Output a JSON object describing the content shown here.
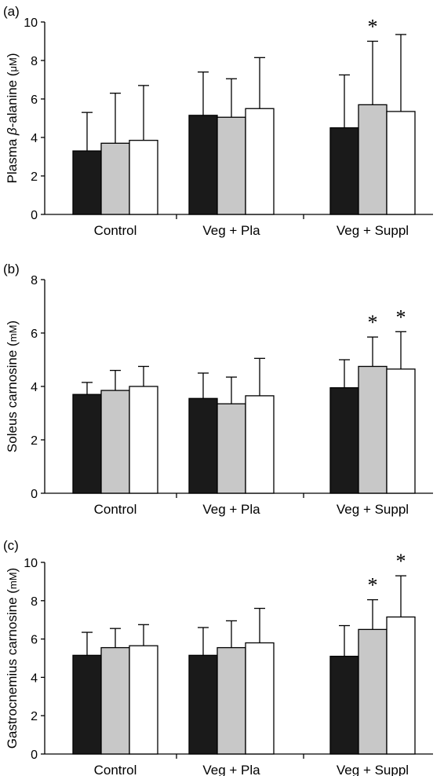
{
  "chart_data": [
    {
      "type": "bar",
      "panel_label": "(a)",
      "ylabel_parts": [
        "Plasma ",
        "β",
        "-alanine (",
        "μM",
        ")"
      ],
      "categories": [
        "Control",
        "Veg + Pla",
        "Veg + Suppl"
      ],
      "ylim": [
        0,
        10
      ],
      "yticks": [
        "0",
        "2",
        "4",
        "6",
        "8",
        "10"
      ],
      "series": [
        {
          "color": "#1a1a1a",
          "values": [
            3.3,
            5.15,
            4.5
          ],
          "errors": [
            2.0,
            2.25,
            2.75
          ]
        },
        {
          "color": "#c8c8c8",
          "values": [
            3.7,
            5.05,
            5.7
          ],
          "errors": [
            2.6,
            2.0,
            3.3
          ]
        },
        {
          "color": "#ffffff",
          "values": [
            3.85,
            5.5,
            5.35
          ],
          "errors": [
            2.85,
            2.65,
            4.0
          ]
        }
      ],
      "significance": [
        {
          "category": 2,
          "series": 1,
          "symbol": "*"
        }
      ],
      "grid": false,
      "legend": "none"
    },
    {
      "type": "bar",
      "panel_label": "(b)",
      "ylabel_parts": [
        "Soleus carnosine (",
        "mM",
        ")"
      ],
      "categories": [
        "Control",
        "Veg + Pla",
        "Veg + Suppl"
      ],
      "ylim": [
        0,
        8
      ],
      "yticks": [
        "0",
        "2",
        "4",
        "6",
        "8"
      ],
      "series": [
        {
          "color": "#1a1a1a",
          "values": [
            3.7,
            3.55,
            3.95
          ],
          "errors": [
            0.45,
            0.95,
            1.05
          ]
        },
        {
          "color": "#c8c8c8",
          "values": [
            3.85,
            3.35,
            4.75
          ],
          "errors": [
            0.75,
            1.0,
            1.1
          ]
        },
        {
          "color": "#ffffff",
          "values": [
            4.0,
            3.65,
            4.65
          ],
          "errors": [
            0.75,
            1.4,
            1.4
          ]
        }
      ],
      "significance": [
        {
          "category": 2,
          "series": 1,
          "symbol": "*"
        },
        {
          "category": 2,
          "series": 2,
          "symbol": "*"
        }
      ],
      "grid": false,
      "legend": "none"
    },
    {
      "type": "bar",
      "panel_label": "(c)",
      "ylabel_parts": [
        "Gastrocnemius carnosine (",
        "mM",
        ")"
      ],
      "categories": [
        "Control",
        "Veg + Pla",
        "Veg + Suppl"
      ],
      "ylim": [
        0,
        10
      ],
      "yticks": [
        "0",
        "2",
        "4",
        "6",
        "8",
        "10"
      ],
      "series": [
        {
          "color": "#1a1a1a",
          "values": [
            5.15,
            5.15,
            5.1
          ],
          "errors": [
            1.2,
            1.45,
            1.6
          ]
        },
        {
          "color": "#c8c8c8",
          "values": [
            5.55,
            5.55,
            6.5
          ],
          "errors": [
            1.0,
            1.4,
            1.55
          ]
        },
        {
          "color": "#ffffff",
          "values": [
            5.65,
            5.8,
            7.15
          ],
          "errors": [
            1.1,
            1.8,
            2.15
          ]
        }
      ],
      "significance": [
        {
          "category": 2,
          "series": 1,
          "symbol": "*"
        },
        {
          "category": 2,
          "series": 2,
          "symbol": "*"
        }
      ],
      "grid": false,
      "legend": "none"
    }
  ]
}
